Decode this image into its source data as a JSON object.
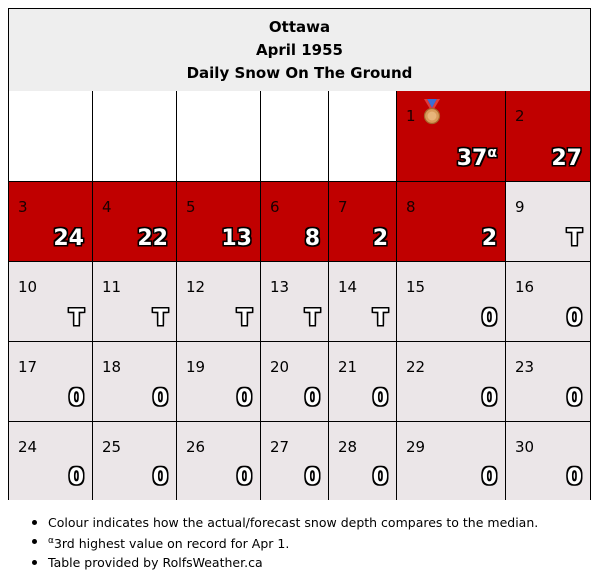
{
  "header": {
    "city": "Ottawa",
    "month": "April 1955",
    "metric": "Daily Snow On The Ground"
  },
  "colors": {
    "above_median": "#c00000",
    "at_median": "#ebe6e8",
    "empty": "#ffffff",
    "header_bg": "#eeeeee"
  },
  "calendar": {
    "rows": [
      [
        {
          "day": "",
          "value": ""
        },
        {
          "day": "",
          "value": ""
        },
        {
          "day": "",
          "value": ""
        },
        {
          "day": "",
          "value": ""
        },
        {
          "day": "",
          "value": ""
        },
        {
          "day": "1",
          "value": "37",
          "superscript": "α",
          "status": "above",
          "icon": "bronze-medal-icon"
        },
        {
          "day": "2",
          "value": "27",
          "status": "above"
        }
      ],
      [
        {
          "day": "3",
          "value": "24",
          "status": "above"
        },
        {
          "day": "4",
          "value": "22",
          "status": "above"
        },
        {
          "day": "5",
          "value": "13",
          "status": "above"
        },
        {
          "day": "6",
          "value": "8",
          "status": "above"
        },
        {
          "day": "7",
          "value": "2",
          "status": "above"
        },
        {
          "day": "8",
          "value": "2",
          "status": "above"
        },
        {
          "day": "9",
          "value": "T",
          "status": "median"
        }
      ],
      [
        {
          "day": "10",
          "value": "T",
          "status": "median"
        },
        {
          "day": "11",
          "value": "T",
          "status": "median"
        },
        {
          "day": "12",
          "value": "T",
          "status": "median"
        },
        {
          "day": "13",
          "value": "T",
          "status": "median"
        },
        {
          "day": "14",
          "value": "T",
          "status": "median"
        },
        {
          "day": "15",
          "value": "0",
          "status": "median"
        },
        {
          "day": "16",
          "value": "0",
          "status": "median"
        }
      ],
      [
        {
          "day": "17",
          "value": "0",
          "status": "median"
        },
        {
          "day": "18",
          "value": "0",
          "status": "median"
        },
        {
          "day": "19",
          "value": "0",
          "status": "median"
        },
        {
          "day": "20",
          "value": "0",
          "status": "median"
        },
        {
          "day": "21",
          "value": "0",
          "status": "median"
        },
        {
          "day": "22",
          "value": "0",
          "status": "median"
        },
        {
          "day": "23",
          "value": "0",
          "status": "median"
        }
      ],
      [
        {
          "day": "24",
          "value": "0",
          "status": "median"
        },
        {
          "day": "25",
          "value": "0",
          "status": "median"
        },
        {
          "day": "26",
          "value": "0",
          "status": "median"
        },
        {
          "day": "27",
          "value": "0",
          "status": "median"
        },
        {
          "day": "28",
          "value": "0",
          "status": "median"
        },
        {
          "day": "29",
          "value": "0",
          "status": "median"
        },
        {
          "day": "30",
          "value": "0",
          "status": "median"
        }
      ]
    ]
  },
  "notes": [
    {
      "text": "Colour indicates how the actual/forecast snow depth compares to the median."
    },
    {
      "prefix": "α",
      "text": "3rd highest value on record for Apr 1."
    },
    {
      "text": "Table provided by RolfsWeather.ca"
    }
  ]
}
